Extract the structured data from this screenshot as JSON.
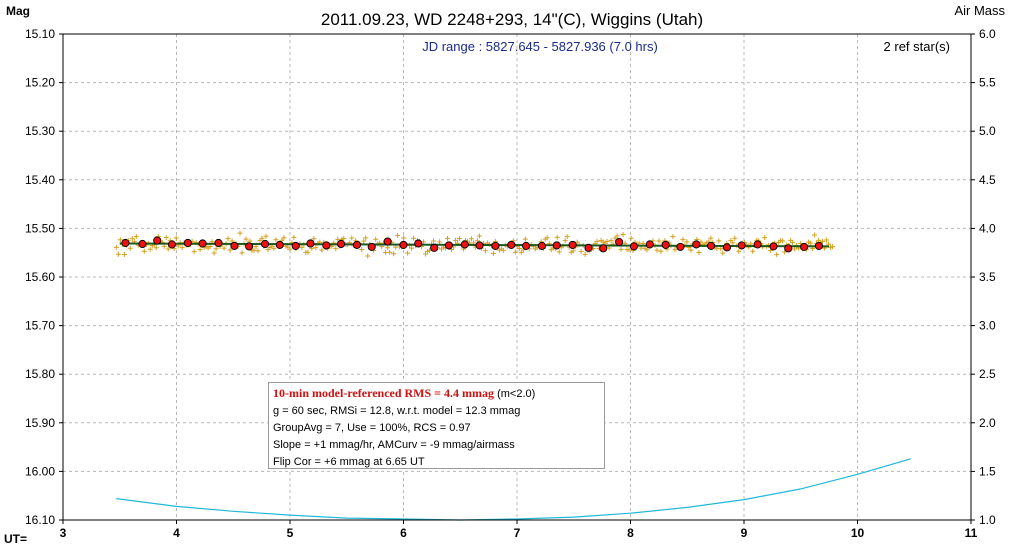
{
  "chart_data": {
    "type": "scatter",
    "title": "2011.09.23, WD 2248+293, 14\"(C), Wiggins (Utah)",
    "ylabel": "Mag",
    "y2label": "Air Mass",
    "xlabel": "UT=",
    "xlim": [
      3,
      11
    ],
    "ylim": [
      15.1,
      16.1
    ],
    "y_inverted": true,
    "y2lim": [
      1.0,
      6.0
    ],
    "grid": true,
    "x_ticks": [
      "3",
      "4",
      "5",
      "6",
      "7",
      "8",
      "9",
      "10",
      "11"
    ],
    "y_ticks": [
      "15.10",
      "15.20",
      "15.30",
      "15.40",
      "15.50",
      "15.60",
      "15.70",
      "15.80",
      "15.90",
      "16.00",
      "16.10"
    ],
    "y2_ticks": [
      "6.0",
      "5.5",
      "5.0",
      "4.5",
      "4.0",
      "3.5",
      "3.0",
      "2.5",
      "2.0",
      "1.5",
      "1.0"
    ],
    "annotations": {
      "jd_range": "JD range : 5827.645 - 5827.936 (7.0 hrs)",
      "ref_stars": "2 ref star(s)"
    },
    "stats": {
      "rms_highlight": "10-min model-referenced RMS = 4.4 mmag",
      "rms_suffix": " (m<2.0)",
      "line2": "g = 60 sec, RMSi = 12.8, w.r.t. model = 12.3 mmag",
      "line3": "GroupAvg = 7, Use = 100%, RCS = 0.97",
      "line4": "Slope = +1 mmag/hr, AMCurv = -9 mmag/airmass",
      "line5": "Flip Cor = +6 mmag at 6.65 UT"
    },
    "series": [
      {
        "role": "individual",
        "marker": "plus",
        "color": "#d4a020",
        "ut_start": 3.47,
        "ut_end": 9.78,
        "count": 360,
        "mean_mag": 15.535,
        "scatter_mag": 0.0128
      },
      {
        "role": "group_average",
        "marker": "dot",
        "color": "#ee1111",
        "x": [
          3.55,
          3.7,
          3.83,
          3.96,
          4.1,
          4.23,
          4.37,
          4.51,
          4.64,
          4.78,
          4.91,
          5.05,
          5.18,
          5.32,
          5.45,
          5.59,
          5.72,
          5.86,
          6.0,
          6.13,
          6.27,
          6.4,
          6.54,
          6.67,
          6.81,
          6.95,
          7.08,
          7.22,
          7.35,
          7.49,
          7.63,
          7.76,
          7.9,
          8.03,
          8.17,
          8.31,
          8.44,
          8.58,
          8.71,
          8.85,
          8.98,
          9.12,
          9.26,
          9.39,
          9.53,
          9.66
        ],
        "y": [
          15.53,
          15.532,
          15.525,
          15.533,
          15.53,
          15.531,
          15.53,
          15.536,
          15.537,
          15.532,
          15.534,
          15.536,
          15.531,
          15.535,
          15.532,
          15.534,
          15.538,
          15.527,
          15.534,
          15.531,
          15.54,
          15.535,
          15.533,
          15.535,
          15.536,
          15.534,
          15.536,
          15.536,
          15.535,
          15.534,
          15.54,
          15.541,
          15.528,
          15.537,
          15.533,
          15.534,
          15.538,
          15.533,
          15.536,
          15.539,
          15.535,
          15.533,
          15.537,
          15.541,
          15.538,
          15.536
        ]
      },
      {
        "role": "model_fit",
        "color": "#1a5a1a",
        "x": [
          3.5,
          9.75
        ],
        "y": [
          15.531,
          15.537
        ]
      },
      {
        "role": "air_mass",
        "color": "#22b8d8",
        "axis": "right",
        "x": [
          3.47,
          4.0,
          4.5,
          5.0,
          5.5,
          6.0,
          6.5,
          7.0,
          7.5,
          8.0,
          8.5,
          9.0,
          9.5,
          10.0,
          10.47
        ],
        "y": [
          1.22,
          1.14,
          1.09,
          1.05,
          1.02,
          1.01,
          1.0,
          1.01,
          1.03,
          1.07,
          1.13,
          1.21,
          1.32,
          1.47,
          1.63
        ]
      }
    ]
  }
}
